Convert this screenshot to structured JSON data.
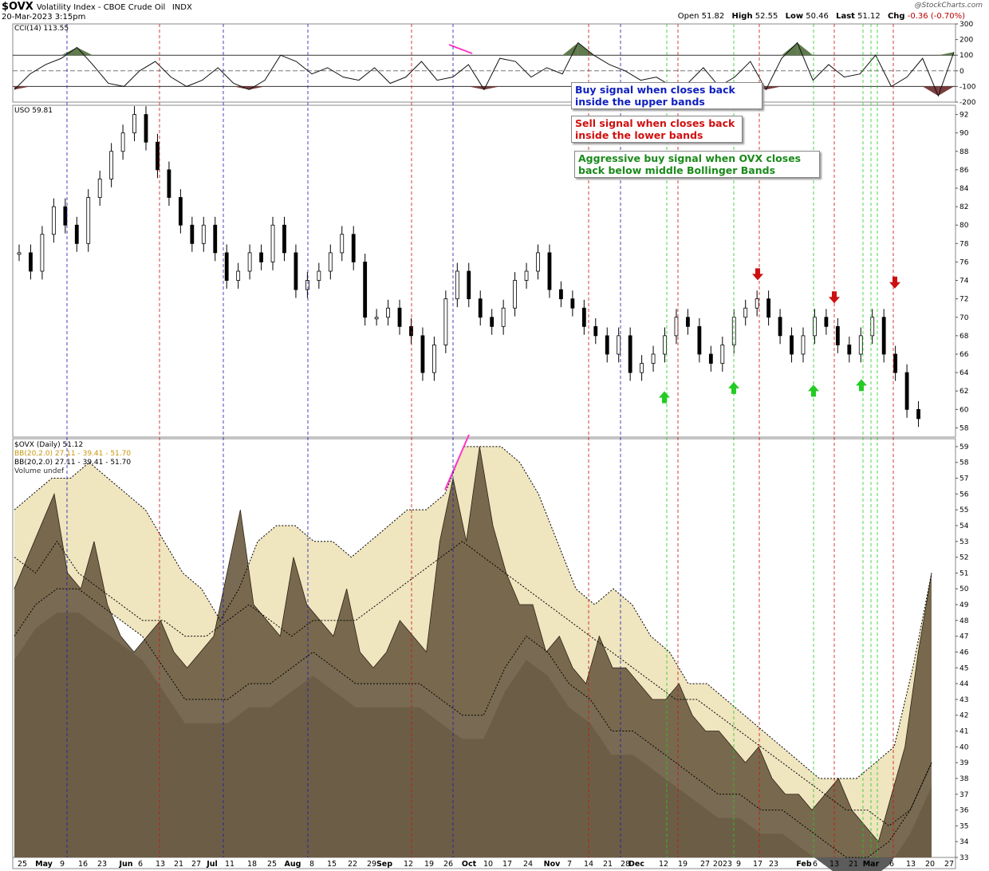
{
  "header": {
    "symbol": "$OVX",
    "name": "Volatility Index - CBOE Crude Oil",
    "exchange": "INDX",
    "date": "20-Mar-2023 3:15pm",
    "watermark": "@StockCharts.com",
    "open_label": "Open",
    "open": "51.82",
    "high_label": "High",
    "high": "52.55",
    "low_label": "Low",
    "low": "50.46",
    "last_label": "Last",
    "last": "51.12",
    "chg_label": "Chg",
    "chg": "-0.36 (-0.70%)"
  },
  "panels": {
    "cci_label": "CCI(14) 113.55",
    "uso_label": "USO 59.81",
    "ovx_label": "$OVX (Daily) 51.12",
    "bb1_label": "BB(20,2.0) 27.11 - 39.41 - 51.70",
    "bb2_label": "BB(20,2.0) 27.11 - 39.41 - 51.70",
    "vol_label": "Volume undef"
  },
  "notes": {
    "buy": "Buy signal when closes back inside the upper bands",
    "sell": "Sell signal when closes back inside the lower bands",
    "aggressive": "Aggressive buy signal when OVX closes back below middle Bollinger Bands"
  },
  "colors": {
    "buy": "#1a1ab0",
    "sell": "#cc1010",
    "aggressive": "#22cc22",
    "band_fill": "#efe5bf",
    "ovx_fill": "#6e5e44",
    "volume_fill": "#5c5c5c",
    "cci_pos": "#5f7a4c",
    "cci_neg": "#7a3e3e",
    "divergence": "#ff33cc"
  },
  "chart_data": [
    {
      "type": "line",
      "name": "CCI(14)",
      "ylim": [
        -200,
        300
      ],
      "ticks": [
        300,
        200,
        100,
        0,
        -100,
        -200
      ],
      "x": [
        0,
        5,
        10,
        15,
        20,
        25,
        30,
        35,
        40,
        45,
        50,
        55,
        60,
        65,
        70,
        75,
        80,
        85,
        90,
        95,
        100,
        105,
        110,
        115,
        120,
        125,
        130,
        135,
        140,
        145,
        150,
        155,
        160,
        165,
        170,
        175,
        180,
        185,
        190,
        195,
        200,
        205,
        210,
        215,
        220,
        225,
        230,
        235,
        240,
        245,
        250,
        255,
        260,
        265,
        270,
        275,
        280,
        285,
        290,
        295,
        300
      ],
      "values": [
        -120,
        -20,
        40,
        80,
        150,
        40,
        -80,
        -100,
        0,
        60,
        -40,
        -100,
        -60,
        20,
        -80,
        -120,
        -60,
        100,
        60,
        -20,
        20,
        -40,
        -60,
        20,
        -80,
        -40,
        60,
        -60,
        -40,
        40,
        -120,
        80,
        60,
        -40,
        20,
        -20,
        180,
        100,
        40,
        0,
        -60,
        -40,
        -100,
        -80,
        20,
        -100,
        -40,
        60,
        -120,
        80,
        180,
        -60,
        40,
        -40,
        -20,
        100,
        -100,
        -40,
        80,
        -160,
        120
      ]
    },
    {
      "type": "candlestick",
      "name": "USO",
      "ylim": [
        57,
        93
      ],
      "ticks": [
        92,
        90,
        88,
        86,
        84,
        82,
        80,
        78,
        76,
        74,
        72,
        70,
        68,
        66,
        64,
        62,
        60,
        58
      ],
      "series": [
        {
          "name": "USO",
          "values": [
            77,
            75,
            79,
            82,
            80,
            78,
            83,
            85,
            88,
            90,
            92,
            89,
            86,
            83,
            80,
            78,
            80,
            77,
            74,
            75,
            77,
            76,
            80,
            77,
            73,
            74,
            75,
            77,
            79,
            76,
            70,
            70,
            71,
            69,
            68,
            64,
            67,
            72,
            75,
            72,
            70,
            69,
            71,
            74,
            75,
            77,
            73,
            72,
            71,
            69,
            68,
            66,
            68,
            64,
            65,
            66,
            68,
            70,
            69,
            66,
            65,
            67,
            70,
            71,
            72,
            70,
            68,
            66,
            68,
            70,
            69,
            67,
            66,
            68,
            70,
            66,
            64,
            60,
            59
          ]
        }
      ],
      "annotations": {
        "buy_arrows_at": [
          62.5,
          63.5,
          63.2,
          63.8
        ],
        "sell_arrows_at": [
          73.5,
          71.0,
          72.6
        ]
      }
    },
    {
      "type": "area",
      "name": "$OVX (Daily)",
      "ylim": [
        33,
        59.5
      ],
      "ticks": [
        59,
        58,
        57,
        56,
        55,
        54,
        53,
        52,
        51,
        50,
        49,
        48,
        47,
        46,
        45,
        44,
        43,
        42,
        41,
        40,
        39,
        38,
        37,
        36,
        35,
        34,
        33
      ],
      "x_ticks": [
        "25",
        "May",
        "9",
        "16",
        "23",
        "Jun",
        "6",
        "13",
        "21",
        "27",
        "Jul",
        "11",
        "18",
        "25",
        "Aug",
        "8",
        "15",
        "22",
        "29",
        "Sep",
        "12",
        "19",
        "26",
        "Oct",
        "10",
        "17",
        "24",
        "Nov",
        "7",
        "14",
        "21",
        "28",
        "Dec",
        "12",
        "19",
        "27",
        "2023",
        "9",
        "17",
        "23",
        "Feb",
        "6",
        "13",
        "21",
        "Mar",
        "6",
        "13",
        "20",
        "27"
      ],
      "series": [
        {
          "name": "$OVX (Daily) 51.12",
          "values": [
            50,
            52,
            54,
            56,
            51,
            50,
            53,
            49,
            47,
            46,
            47,
            48,
            46,
            45,
            46,
            47,
            51,
            55,
            49,
            48,
            47,
            52,
            49,
            48,
            47,
            50,
            46,
            45,
            46,
            48,
            47,
            46,
            53,
            57,
            53,
            59,
            54,
            51,
            49,
            49,
            46,
            47,
            45,
            44,
            47,
            45,
            45,
            44,
            43,
            43,
            44,
            42,
            41,
            41,
            40,
            39,
            40,
            38,
            37,
            37,
            36,
            37,
            38,
            36,
            35,
            34,
            37,
            40,
            46,
            51
          ]
        },
        {
          "name": "BB upper",
          "values": [
            55,
            56,
            57,
            57,
            58,
            57,
            56,
            55,
            53,
            51,
            50,
            48,
            50,
            53,
            54,
            54,
            53,
            53,
            52,
            53,
            54,
            55,
            55,
            56,
            59,
            59,
            59,
            58,
            56,
            53,
            50,
            49,
            50,
            49,
            47,
            46,
            44,
            44,
            43,
            42,
            41,
            40,
            39,
            38,
            38,
            38,
            39,
            40,
            45,
            51
          ]
        },
        {
          "name": "BB middle",
          "values": [
            52,
            51,
            53,
            51,
            50,
            49,
            48,
            48,
            47,
            47,
            48,
            49,
            48,
            47,
            48,
            48,
            48,
            49,
            50,
            51,
            52,
            53,
            52,
            51,
            50,
            49,
            48,
            47,
            46,
            45,
            44,
            43,
            43,
            42,
            41,
            40,
            39,
            38,
            37,
            36,
            36,
            35,
            36,
            39
          ]
        },
        {
          "name": "BB lower",
          "values": [
            47,
            49,
            50,
            50,
            49,
            48,
            47,
            45,
            43,
            43,
            43,
            44,
            44,
            45,
            46,
            45,
            44,
            44,
            44,
            44,
            43,
            42,
            42,
            45,
            47,
            46,
            44,
            43,
            41,
            41,
            40,
            39,
            38,
            37,
            37,
            36,
            36,
            35,
            34,
            33,
            33,
            34,
            36,
            39
          ]
        }
      ]
    }
  ]
}
